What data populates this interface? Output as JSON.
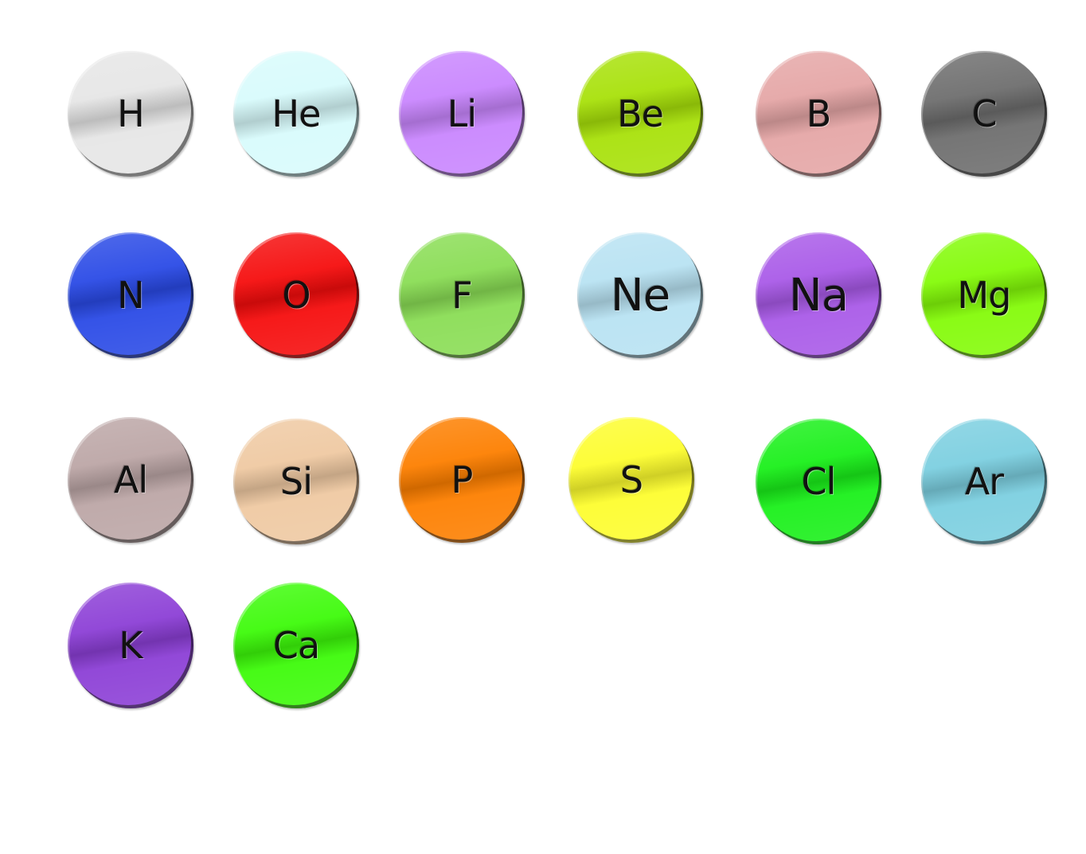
{
  "elements": [
    {
      "symbol": "H",
      "color": "#e6e6e6"
    },
    {
      "symbol": "He",
      "color": "#d8fbfc"
    },
    {
      "symbol": "Li",
      "color": "#c986fe"
    },
    {
      "symbol": "Be",
      "color": "#a8e10a"
    },
    {
      "symbol": "B",
      "color": "#e5a6a6"
    },
    {
      "symbol": "C",
      "color": "#6e6e6e"
    },
    {
      "symbol": "N",
      "color": "#2a4ae6"
    },
    {
      "symbol": "O",
      "color": "#f50d0d"
    },
    {
      "symbol": "F",
      "color": "#8add55"
    },
    {
      "symbol": "Ne",
      "color": "#b8e2f2"
    },
    {
      "symbol": "Na",
      "color": "#a95ae8"
    },
    {
      "symbol": "Mg",
      "color": "#84fb09"
    },
    {
      "symbol": "Al",
      "color": "#bca6a6"
    },
    {
      "symbol": "Si",
      "color": "#efc9a2"
    },
    {
      "symbol": "P",
      "color": "#fd7f00"
    },
    {
      "symbol": "S",
      "color": "#fdfd2e"
    },
    {
      "symbol": "Cl",
      "color": "#1af01a"
    },
    {
      "symbol": "Ar",
      "color": "#7ccfe0"
    },
    {
      "symbol": "K",
      "color": "#8c3fd6"
    },
    {
      "symbol": "Ca",
      "color": "#3dfb0a"
    }
  ]
}
